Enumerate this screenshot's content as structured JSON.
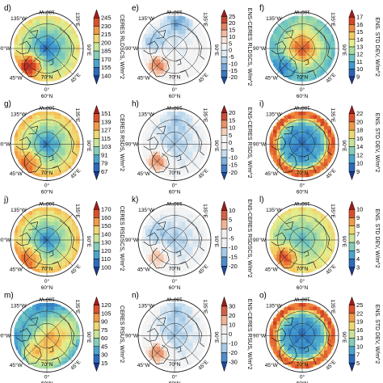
{
  "panels": [
    {
      "label": "d)",
      "colorbar_label": "CERES RLDSCS, W/m^2",
      "palette": "seq",
      "ticks": [
        "245",
        "230",
        "215",
        "200",
        "185",
        "170",
        "155",
        "140"
      ],
      "field": "longwave"
    },
    {
      "label": "e)",
      "colorbar_label": "ENS-CERES RLDSCS, W/m^2",
      "palette": "div",
      "ticks": [
        "25",
        "20",
        "15",
        "10",
        "5",
        "0",
        "-5",
        "-10",
        "-15",
        "-20"
      ],
      "field": "diff_mixed"
    },
    {
      "label": "f)",
      "colorbar_label": "ENS. STD DEV, W/m^2",
      "palette": "seq",
      "ticks": [
        "17",
        "16",
        "15",
        "14",
        "13",
        "12",
        "11",
        "10",
        "9"
      ],
      "field": "std_center"
    },
    {
      "label": "g)",
      "colorbar_label": "CERES RSDS, W/m^2",
      "palette": "seq",
      "ticks": [
        "151",
        "139",
        "127",
        "115",
        "103",
        "91",
        "79",
        "67"
      ],
      "field": "shortwave"
    },
    {
      "label": "h)",
      "colorbar_label": "ENS-CERES RSDS, W/m^2",
      "palette": "div",
      "ticks": [
        "20",
        "15",
        "10",
        "5",
        "0",
        "-5",
        "-10",
        "-15",
        "-20"
      ],
      "field": "diff_cool"
    },
    {
      "label": "i)",
      "colorbar_label": "ENS. STD DEV, W/m^2",
      "palette": "seq",
      "ticks": [
        "22",
        "20",
        "18",
        "16",
        "14",
        "12",
        "10",
        "9"
      ],
      "field": "std_ring"
    },
    {
      "label": "j)",
      "colorbar_label": "CERES RSDSCS, W/m^2",
      "palette": "seq",
      "ticks": [
        "170",
        "160",
        "150",
        "140",
        "130",
        "120",
        "110",
        "100"
      ],
      "field": "shortwave"
    },
    {
      "label": "k)",
      "colorbar_label": "ENS-CERES RSDSCS, W/m^2",
      "palette": "div",
      "ticks": [
        "10",
        "5",
        "0",
        "-5",
        "-10",
        "-15",
        "-20"
      ],
      "field": "diff_weak"
    },
    {
      "label": "l)",
      "colorbar_label": "ENS. STD DEV, W/m^2",
      "palette": "seq",
      "ticks": [
        "10",
        "9",
        "8",
        "7",
        "6",
        "5",
        "4",
        "3"
      ],
      "field": "std_low"
    },
    {
      "label": "m)",
      "colorbar_label": "CERES RSUS, W/m^2",
      "palette": "seq",
      "ticks": [
        "120",
        "105",
        "90",
        "75",
        "60",
        "45",
        "30",
        "15"
      ],
      "field": "upwelling"
    },
    {
      "label": "n)",
      "colorbar_label": "ENS-CERES RSUS, W/m^2",
      "palette": "div",
      "ticks": [
        "30",
        "20",
        "10",
        "0",
        "-10",
        "-20",
        "-30"
      ],
      "field": "diff_cool"
    },
    {
      "label": "o)",
      "colorbar_label": "ENS. STD DEV, W/m^2",
      "palette": "seq",
      "ticks": [
        "25",
        "22",
        "19",
        "16",
        "13",
        "10",
        "7",
        "5"
      ],
      "field": "std_ring"
    }
  ],
  "map_labels": {
    "lon_135w": "135°W",
    "lon_180": "180°W",
    "lon_135e": "135°E",
    "lon_90w": "90°W",
    "lon_90e": "90°E",
    "lon_45w": "45°W",
    "lon_0": "0°",
    "lon_45e": "45°E",
    "lat_60": "60°N",
    "lat_70": "70°N"
  },
  "colors": {
    "seq": [
      "#1b3a8a",
      "#2a63b8",
      "#3f9ad0",
      "#6cc4c4",
      "#a8dca0",
      "#e6ee8c",
      "#f5c960",
      "#ef8a3c",
      "#d8472a",
      "#a51c1c"
    ],
    "div": [
      "#1d4b99",
      "#3d7ec0",
      "#7fb2dc",
      "#c3dcef",
      "#f4f4f4",
      "#f4f4f4",
      "#f6cdb5",
      "#e8926a",
      "#c94f36",
      "#9a1d1d"
    ]
  },
  "chart_data": {
    "type": "heatmap",
    "projection": "north polar stereographic",
    "rows": 4,
    "cols": 3,
    "panel_labels": [
      "d)",
      "e)",
      "f)",
      "g)",
      "h)",
      "i)",
      "j)",
      "k)",
      "l)",
      "m)",
      "n)",
      "o)"
    ],
    "colorbar_labels": [
      "CERES RLDSCS, W/m^2",
      "ENS-CERES RLDSCS, W/m^2",
      "ENS. STD DEV, W/m^2",
      "CERES RSDS, W/m^2",
      "ENS-CERES RSDS, W/m^2",
      "ENS. STD DEV, W/m^2",
      "CERES RSDSCS, W/m^2",
      "ENS-CERES RSDSCS, W/m^2",
      "ENS. STD DEV, W/m^2",
      "CERES RSUS, W/m^2",
      "ENS-CERES RSUS, W/m^2",
      "ENS. STD DEV, W/m^2"
    ],
    "colorbar_ranges": [
      [
        140,
        245
      ],
      [
        -20,
        25
      ],
      [
        9,
        17
      ],
      [
        67,
        151
      ],
      [
        -20,
        20
      ],
      [
        9,
        22
      ],
      [
        100,
        170
      ],
      [
        -20,
        10
      ],
      [
        3,
        10
      ],
      [
        15,
        120
      ],
      [
        -30,
        30
      ],
      [
        5,
        25
      ]
    ],
    "grid": true,
    "legend": "right"
  }
}
